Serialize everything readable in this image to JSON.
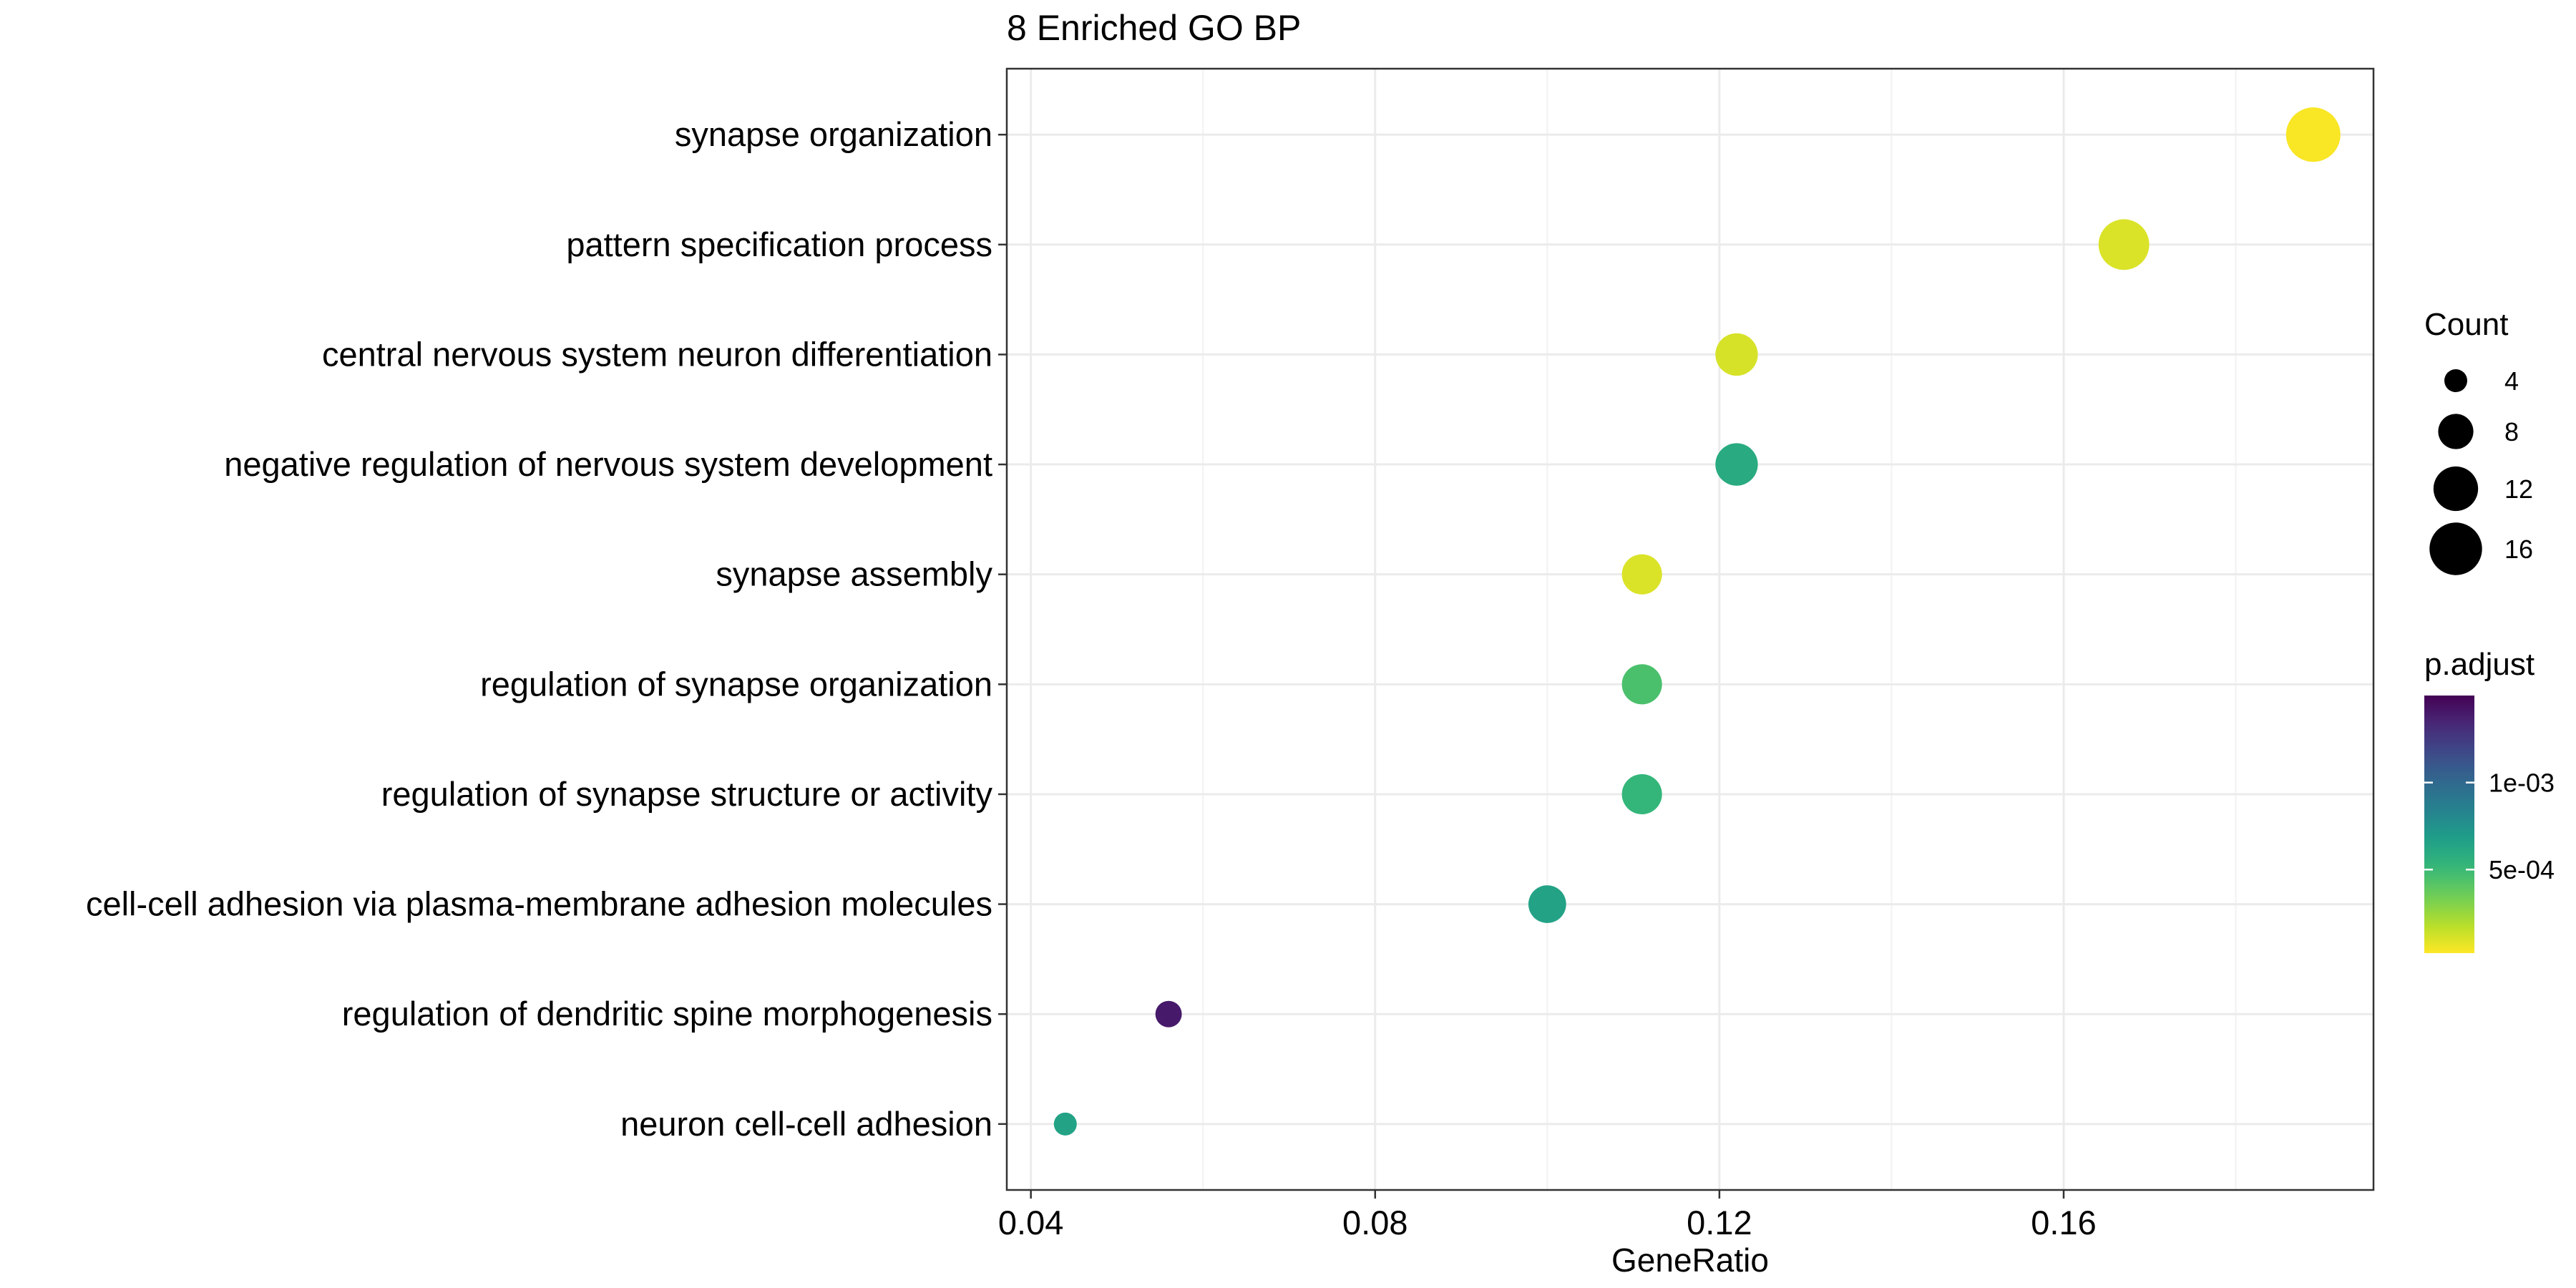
{
  "chart_data": {
    "type": "scatter",
    "title": "8 Enriched GO BP",
    "xlabel": "GeneRatio",
    "ylabel": "",
    "xlim": [
      0.0372,
      0.196
    ],
    "xticks": [
      0.04,
      0.08,
      0.12,
      0.16
    ],
    "xtick_labels": [
      "0.04",
      "0.08",
      "0.12",
      "0.16"
    ],
    "grid": true,
    "categories": [
      "synapse organization",
      "pattern specification process",
      "central nervous system neuron differentiation",
      "negative regulation of nervous system development",
      "synapse assembly",
      "regulation of synapse organization",
      "regulation of synapse structure or activity",
      "cell-cell adhesion via plasma-membrane adhesion molecules",
      "regulation of dendritic spine morphogenesis",
      "neuron cell-cell adhesion"
    ],
    "gene_ratio": [
      0.189,
      0.167,
      0.122,
      0.122,
      0.111,
      0.111,
      0.111,
      0.1,
      0.056,
      0.044
    ],
    "count": [
      17,
      15,
      11,
      11,
      10,
      10,
      10,
      9,
      5,
      4
    ],
    "p_adjust": [
      3e-05,
      0.0001,
      0.00011,
      0.0006,
      0.0001,
      0.00045,
      0.00052,
      0.00065,
      0.0014,
      0.00065
    ],
    "size_legend": {
      "title": "Count",
      "values": [
        4,
        8,
        12,
        16
      ],
      "labels": [
        "4",
        "8",
        "12",
        "16"
      ]
    },
    "color_legend": {
      "title": "p.adjust",
      "range": [
        2e-05,
        0.0015
      ],
      "ticks": [
        0.001,
        0.0005
      ],
      "tick_labels": [
        "1e-03",
        "5e-04"
      ],
      "colormap": "viridis"
    }
  }
}
